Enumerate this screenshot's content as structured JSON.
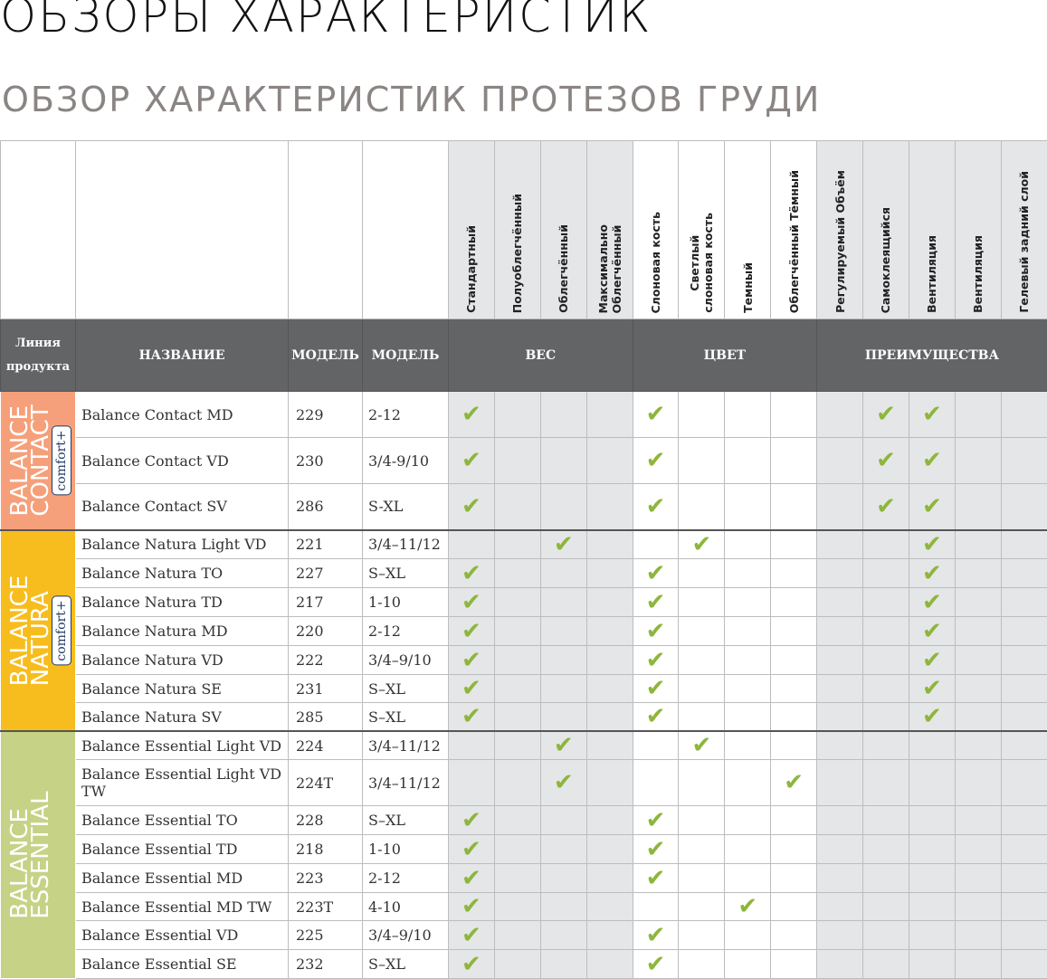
{
  "title": "ОБЗОРЫ ХАРАКТЕРИСТИК",
  "subtitle": "ОБЗОР ХАРАКТЕРИСТИК ПРОТЕЗОВ ГРУДИ",
  "colors": {
    "header": "#636466",
    "check": "#8db63c",
    "contact": "#f5a07a",
    "natura": "#f7bd1e",
    "essential": "#c6d285",
    "gray_cell": "#e5e6e7"
  },
  "feature_columns": [
    "Стандартный",
    "Полуоблегчённый",
    "Облегчённый",
    "Максимально\nОблегчённый",
    "Слоновая кость",
    "Светлый\nслоновая кость",
    "Темный",
    "Облегчённый Тёмный",
    "Регулируемый Объём",
    "Самоклеящийся",
    "Вентиляция",
    "Вентиляция",
    "Гелевый задний слой"
  ],
  "header": {
    "line": "Линия продукта",
    "name": "НАЗВАНИЕ",
    "model": "МОДЕЛЬ",
    "size": "МОДЕЛЬ",
    "weight": "ВЕС",
    "color": "ЦВЕТ",
    "advantages": "ПРЕИМУЩЕСТВА"
  },
  "check_icon": "check-icon",
  "groups": [
    {
      "line": "BALANCE\nCONTACT",
      "badge": "comfort+",
      "color": "#f5a07a",
      "rows": [
        {
          "name": "Balance Contact MD",
          "model": "229",
          "size": "2-12",
          "checks": [
            0,
            4,
            9,
            10
          ],
          "h": 51
        },
        {
          "name": "Balance Contact VD",
          "model": "230",
          "size": "3/4-9/10",
          "checks": [
            0,
            4,
            9,
            10
          ],
          "h": 51
        },
        {
          "name": "Balance Contact SV",
          "model": "286",
          "size": "S-XL",
          "checks": [
            0,
            4,
            9,
            10
          ],
          "h": 51
        }
      ]
    },
    {
      "line": "BALANCE\nNATURA",
      "badge": "comfort+",
      "color": "#f7bd1e",
      "rows": [
        {
          "name": "Balance Natura Light VD",
          "model": "221",
          "size": "3/4–11/12",
          "checks": [
            2,
            5,
            10
          ],
          "h": 32
        },
        {
          "name": "Balance Natura TO",
          "model": "227",
          "size": "S–XL",
          "checks": [
            0,
            4,
            10
          ],
          "h": 32
        },
        {
          "name": "Balance Natura TD",
          "model": "217",
          "size": "1-10",
          "checks": [
            0,
            4,
            10
          ],
          "h": 32
        },
        {
          "name": "Balance Natura MD",
          "model": "220",
          "size": "2-12",
          "checks": [
            0,
            4,
            10
          ],
          "h": 32
        },
        {
          "name": "Balance Natura VD",
          "model": "222",
          "size": "3/4–9/10",
          "checks": [
            0,
            4,
            10
          ],
          "h": 32
        },
        {
          "name": "Balance Natura SE",
          "model": "231",
          "size": "S–XL",
          "checks": [
            0,
            4,
            10
          ],
          "h": 31
        },
        {
          "name": "Balance Natura SV",
          "model": "285",
          "size": "S–XL",
          "checks": [
            0,
            4,
            10
          ],
          "h": 31
        }
      ]
    },
    {
      "line": "BALANCE\nESSENTIAL",
      "badge": "",
      "color": "#c6d285",
      "rows": [
        {
          "name": "Balance Essential Light VD",
          "model": "224",
          "size": "3/4–11/12",
          "checks": [
            2,
            5
          ],
          "h": 31
        },
        {
          "name": "Balance Essential Light VD TW",
          "model": "224T",
          "size": "3/4–11/12",
          "checks": [
            2,
            7
          ],
          "h": 51
        },
        {
          "name": "Balance Essential TO",
          "model": "228",
          "size": "S–XL",
          "checks": [
            0,
            4
          ],
          "h": 32
        },
        {
          "name": "Balance Essential TD",
          "model": "218",
          "size": "1-10",
          "checks": [
            0,
            4
          ],
          "h": 32
        },
        {
          "name": "Balance Essential MD",
          "model": "223",
          "size": "2-12",
          "checks": [
            0,
            4
          ],
          "h": 32
        },
        {
          "name": "Balance Essential MD TW",
          "model": "223T",
          "size": "4-10",
          "checks": [
            0,
            6
          ],
          "h": 31
        },
        {
          "name": "Balance Essential VD",
          "model": "225",
          "size": "3/4–9/10",
          "checks": [
            0,
            4
          ],
          "h": 32
        },
        {
          "name": "Balance Essential SE",
          "model": "232",
          "size": "S–XL",
          "checks": [
            0,
            4
          ],
          "h": 32
        }
      ]
    }
  ]
}
